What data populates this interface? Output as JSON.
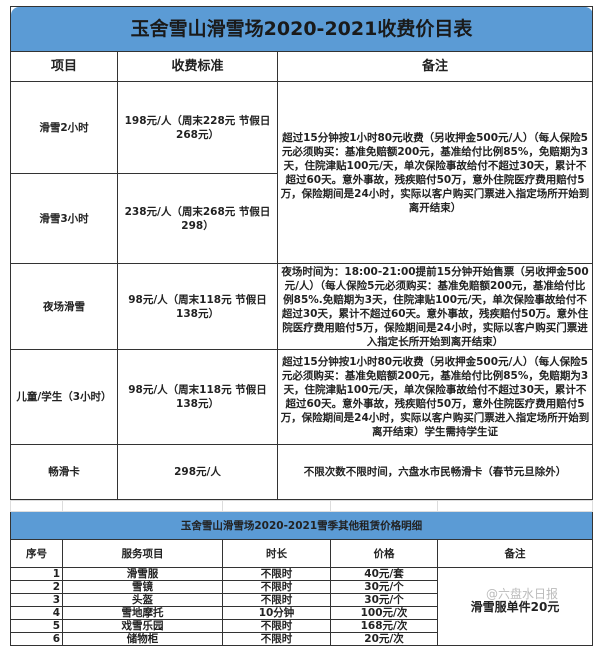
{
  "title": "玉舍雪山滑雪场2020-2021收费价目表",
  "headers": [
    "项目",
    "收费标准",
    "备注"
  ],
  "rows": [
    {
      "item": "滑雪2小时",
      "price": "198元/人（周末228元 节假日268元）"
    },
    {
      "item": "滑雪3小时",
      "price": "238元/人（周末268元 节假日298）"
    },
    {
      "item": "夜场滑雪",
      "price": "98元/人（周末118元 节假日138元）",
      "note": "夜场时间为：18:00-21:00提前15分钟开始售票（另收押金500元/人）（每人保险5元必须购买：基准免赔额200元，基准给付比例85%.免赔期为3天，住院津贴100元/天，单次保险事故给付不超过30天，累计不超过60天。意外事故，残疾赔付50万。意外住院医疗费用赔付5万，保险期间是24小时，实际以客户购买门票进入指定长所开始到离开结束）"
    },
    {
      "item": "儿童/学生（3小时）",
      "price": "98元/人（周末118元 节假日138元）",
      "note": "超过15分钟按1小时80元收费（另收押金500元/人）（每人保险5元必须购买：基准免赔额200元，基准给付比例85%，免赔期为3天，住院津贴100元/天，单次保险事故给付不超过30天，累计不超过60天。意外事故，残疾赔付50万，意外住院医疗费用赔付5万，保险期间是24小时，实际以客户购买门票进入指定场所开始到离开结束）学生需持学生证"
    },
    {
      "item": "畅滑卡",
      "price": "298元/人",
      "note": "不限次数不限时间，六盘水市民畅滑卡（春节元旦除外）"
    }
  ],
  "shared_note": "超过15分钟按1小时80元收费（另收押金500元/人）（每人保险5元必须购买：基准免赔额200元，基准给付比例85%，免赔期为3天，住院津贴100元/天，单次保险事故给付不超过30天，累计不超过60天。意外事故，残疾赔付50万，意外住院医疗费用赔付5万，保险期间是24小时，实际以客户购买门票进入指定场所开始到离开结束）",
  "rental": {
    "title": "玉舍雪山滑雪场2020-2021雪季其他租赁价格明细",
    "headers": [
      "序号",
      "服务项目",
      "时长",
      "价格",
      "备注"
    ],
    "rows": [
      {
        "no": "1",
        "item": "滑雪服",
        "duration": "不限时",
        "price": "40元/套"
      },
      {
        "no": "2",
        "item": "雪镜",
        "duration": "不限时",
        "price": "30元/个"
      },
      {
        "no": "3",
        "item": "头盔",
        "duration": "不限时",
        "price": "30元/个"
      },
      {
        "no": "4",
        "item": "雪地摩托",
        "duration": "10分钟",
        "price": "100元/次"
      },
      {
        "no": "5",
        "item": "戏雪乐园",
        "duration": "不限时",
        "price": "168元/次"
      },
      {
        "no": "6",
        "item": "储物柜",
        "duration": "不限时",
        "price": "20元/次"
      }
    ],
    "note": "滑雪服单件20元"
  },
  "watermark": "@六盘水日报",
  "colors": {
    "header_blue": "#5b9bd5"
  }
}
